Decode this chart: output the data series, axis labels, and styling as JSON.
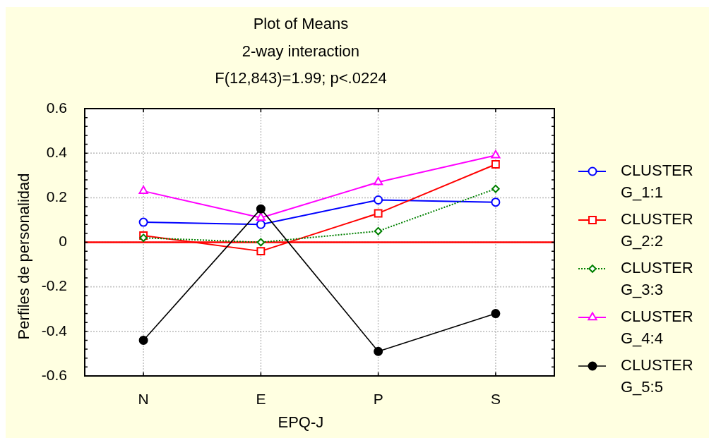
{
  "chart_data": {
    "type": "line",
    "title": "Plot of Means",
    "subtitle": "2-way interaction",
    "annotations": [
      "F(12,843)=1.99; p<.0224"
    ],
    "xlabel": "EPQ-J",
    "ylabel": "Perfiles de personalidad",
    "categories": [
      "N",
      "E",
      "P",
      "S"
    ],
    "series": [
      {
        "name": "CLUSTER G_1:1",
        "color": "#0000ff",
        "marker": "circle",
        "line_style": "solid",
        "values": [
          0.09,
          0.08,
          0.19,
          0.18
        ]
      },
      {
        "name": "CLUSTER G_2:2",
        "color": "#ff0000",
        "marker": "square",
        "line_style": "solid",
        "values": [
          0.03,
          -0.04,
          0.13,
          0.35
        ]
      },
      {
        "name": "CLUSTER G_3:3",
        "color": "#008000",
        "marker": "diamond",
        "line_style": "dotted",
        "values": [
          0.02,
          0.0,
          0.05,
          0.24
        ]
      },
      {
        "name": "CLUSTER G_4:4",
        "color": "#ff00ff",
        "marker": "triangle",
        "line_style": "solid",
        "values": [
          0.23,
          0.11,
          0.27,
          0.39
        ]
      },
      {
        "name": "CLUSTER G_5:5",
        "color": "#000000",
        "marker": "circle",
        "line_style": "solid",
        "values": [
          -0.44,
          0.15,
          -0.49,
          -0.32
        ]
      }
    ],
    "ylim": [
      -0.6,
      0.6
    ],
    "yticks": [
      -0.6,
      {
        "value": -0.56,
        "label": null
      },
      {
        "value": -0.52,
        "label": null
      },
      {
        "value": -0.48,
        "label": null
      },
      {
        "value": -0.44,
        "label": null
      },
      -0.4,
      {
        "value": -0.36,
        "label": null
      },
      {
        "value": -0.32,
        "label": null
      },
      {
        "value": -0.28,
        "label": null
      },
      {
        "value": -0.24,
        "label": null
      },
      -0.2,
      {
        "value": -0.16,
        "label": null
      },
      {
        "value": -0.12,
        "label": null
      },
      {
        "value": -0.08,
        "label": null
      },
      {
        "value": -0.04,
        "label": null
      },
      0,
      {
        "value": 0.04,
        "label": null
      },
      {
        "value": 0.08,
        "label": null
      },
      {
        "value": 0.12,
        "label": null
      },
      {
        "value": 0.16,
        "label": null
      },
      0.2,
      {
        "value": 0.24,
        "label": null
      },
      {
        "value": 0.28,
        "label": null
      },
      {
        "value": 0.32,
        "label": null
      },
      {
        "value": 0.36,
        "label": null
      },
      0.4,
      {
        "value": 0.44,
        "label": null
      },
      {
        "value": 0.48,
        "label": null
      },
      {
        "value": 0.52,
        "label": null
      },
      {
        "value": 0.56,
        "label": null
      },
      0.6
    ],
    "grid": true,
    "legend": "right",
    "ref_lines": [
      {
        "axis": "y",
        "value": 0,
        "color": "#ff0000"
      }
    ]
  }
}
